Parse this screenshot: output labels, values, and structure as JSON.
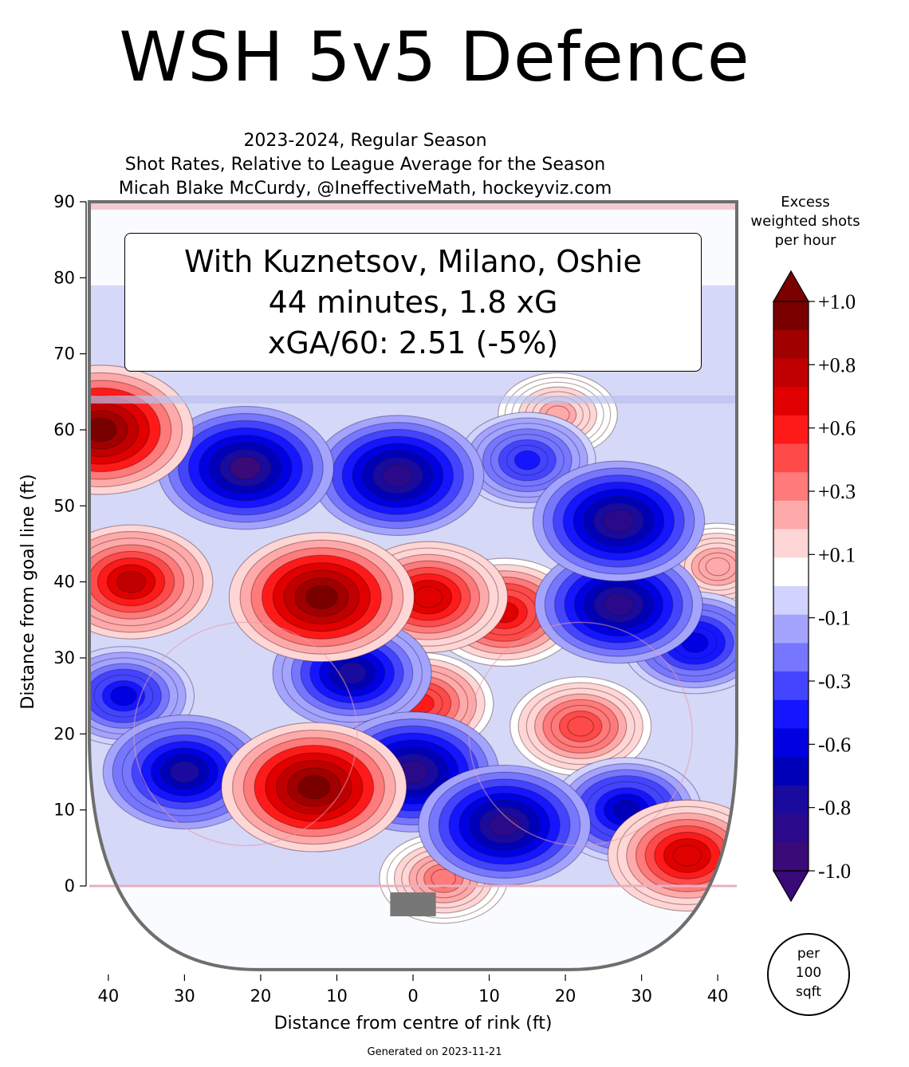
{
  "title": "WSH 5v5 Defence",
  "subtitle_lines": [
    "2023-2024, Regular Season",
    "Shot Rates, Relative to League Average for the Season",
    "Micah Blake McCurdy, @IneffectiveMath, hockeyviz.com"
  ],
  "infobox": {
    "line1": "With Kuznetsov, Milano, Oshie",
    "line2": "44 minutes, 1.8 xG",
    "line3": "xGA/60: 2.51 (-5%)"
  },
  "footer": "Generated on 2023-11-21",
  "colorbar": {
    "title_lines": [
      "Excess",
      "weighted shots",
      "per hour"
    ],
    "tick_labels": [
      "+1.0",
      "+0.8",
      "+0.6",
      "+0.3",
      "+0.1",
      "-0.1",
      "-0.3",
      "-0.6",
      "-0.8",
      "-1.0"
    ],
    "colors": [
      "#7a0000",
      "#a00000",
      "#c00000",
      "#e00000",
      "#ff1a1a",
      "#ff4a4a",
      "#ff7a7a",
      "#ffaaaa",
      "#ffd6d6",
      "#ffffff",
      "#d2d2ff",
      "#a4a4ff",
      "#7676ff",
      "#4444ff",
      "#1515ff",
      "#0000e0",
      "#0000b8",
      "#1a0a9e",
      "#2a0a8a",
      "#3a0a78"
    ],
    "unit_lines": [
      "per",
      "100",
      "sqft"
    ]
  },
  "chart_data": {
    "type": "heatmap",
    "title": "WSH 5v5 Defence",
    "xlabel": "Distance from centre of rink (ft)",
    "ylabel": "Distance from goal line (ft)",
    "x_tick_labels": [
      "40",
      "30",
      "20",
      "10",
      "0",
      "10",
      "20",
      "30",
      "40"
    ],
    "x_tick_values": [
      -40,
      -30,
      -20,
      -10,
      0,
      10,
      20,
      30,
      40
    ],
    "y_tick_values": [
      0,
      10,
      20,
      30,
      40,
      50,
      60,
      70,
      80,
      90
    ],
    "xlim": [
      -42.5,
      42.5
    ],
    "ylim": [
      -11,
      90
    ],
    "color_range": [
      -1.0,
      1.0
    ],
    "hotspots": [
      {
        "x": -41,
        "y": 60,
        "value": 1.0
      },
      {
        "x": -37,
        "y": 40,
        "value": 0.75
      },
      {
        "x": -12,
        "y": 38,
        "value": 1.0
      },
      {
        "x": 2,
        "y": 38,
        "value": 0.7
      },
      {
        "x": 12,
        "y": 36,
        "value": 0.65
      },
      {
        "x": -13,
        "y": 13,
        "value": 1.0
      },
      {
        "x": 1,
        "y": 24,
        "value": 0.55
      },
      {
        "x": 22,
        "y": 21,
        "value": 0.5
      },
      {
        "x": 36,
        "y": 4,
        "value": 0.7
      },
      {
        "x": 4,
        "y": 1,
        "value": 0.35
      },
      {
        "x": 40,
        "y": 42,
        "value": 0.3
      },
      {
        "x": 19,
        "y": 62,
        "value": 0.25
      },
      {
        "x": -22,
        "y": 55,
        "value": -0.9
      },
      {
        "x": -2,
        "y": 54,
        "value": -0.85
      },
      {
        "x": -30,
        "y": 15,
        "value": -0.75
      },
      {
        "x": -8,
        "y": 28,
        "value": -0.7
      },
      {
        "x": 0,
        "y": 15,
        "value": -0.85
      },
      {
        "x": 12,
        "y": 8,
        "value": -0.85
      },
      {
        "x": 27,
        "y": 48,
        "value": -0.85
      },
      {
        "x": 27,
        "y": 37,
        "value": -0.8
      },
      {
        "x": 37,
        "y": 32,
        "value": -0.55
      },
      {
        "x": 28,
        "y": 10,
        "value": -0.6
      },
      {
        "x": -38,
        "y": 25,
        "value": -0.5
      },
      {
        "x": 15,
        "y": 56,
        "value": -0.45
      }
    ]
  }
}
